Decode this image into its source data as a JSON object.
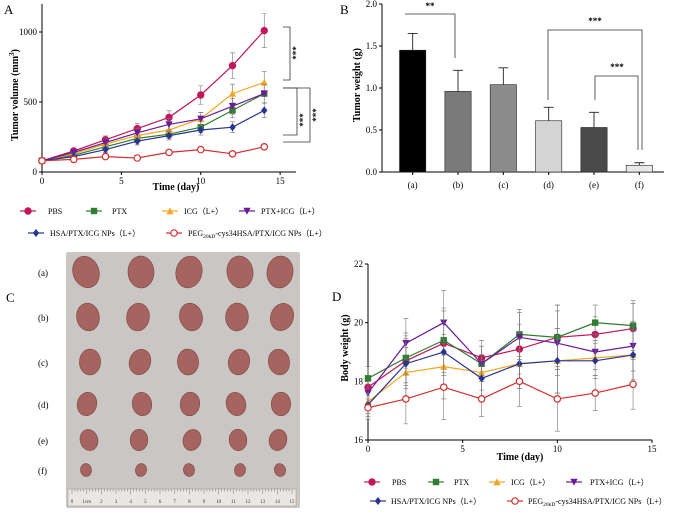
{
  "panels": {
    "a": "A",
    "b": "B",
    "c": "C",
    "d": "D"
  },
  "colors": {
    "pbs": "#c2185b",
    "ptx": "#2e7d32",
    "icg": "#f5a623",
    "ptxicg": "#6a1b9a",
    "hsa": "#283593",
    "peg": "#d32f2f",
    "photo_bg": "#c9c6c4",
    "tumor": "#a5645f"
  },
  "chart_data": [
    {
      "type": "line",
      "title": "A",
      "xlabel": "Time (day)",
      "ylabel": "Tumor volume (mm",
      "ylabel_sup": "3",
      "ylabel_end": ")",
      "xlim": [
        0,
        16
      ],
      "ylim": [
        0,
        1200
      ],
      "xticks": [
        "0",
        "5",
        "10",
        "15"
      ],
      "yticks": [
        "0",
        "500",
        "1000"
      ],
      "x": [
        0,
        2,
        4,
        6,
        8,
        10,
        12,
        14
      ],
      "series": [
        {
          "key": "pbs",
          "name": "PBS",
          "marker": "circle",
          "values": [
            80,
            150,
            230,
            310,
            390,
            550,
            760,
            1010
          ]
        },
        {
          "key": "ptx",
          "name": "PTX",
          "marker": "square",
          "values": [
            80,
            120,
            180,
            240,
            270,
            320,
            440,
            560
          ]
        },
        {
          "key": "icg",
          "name": "ICG（L+）",
          "marker": "triangle",
          "values": [
            80,
            130,
            200,
            260,
            300,
            380,
            560,
            640
          ]
        },
        {
          "key": "ptxicg",
          "name": "PTX+ICG（L+）",
          "marker": "triangle-down",
          "values": [
            80,
            140,
            210,
            280,
            340,
            380,
            470,
            560
          ]
        },
        {
          "key": "hsa",
          "name": "HSA/PTX/ICG NPs（L+）",
          "marker": "diamond",
          "values": [
            80,
            110,
            160,
            220,
            260,
            300,
            320,
            440
          ]
        },
        {
          "key": "peg",
          "name": "PEG",
          "name_sub": "20kD",
          "name_rest": "-cys34HSA/PTX/ICG NPs（L+）",
          "marker": "open-circle",
          "values": [
            80,
            90,
            110,
            100,
            140,
            160,
            130,
            180
          ]
        }
      ],
      "annotations": [
        "***",
        "***",
        "***"
      ]
    },
    {
      "type": "bar",
      "title": "B",
      "ylabel": "Tumor weight (g)",
      "ylim": [
        0,
        2.0
      ],
      "yticks": [
        "0.0",
        "0.5",
        "1.0",
        "1.5",
        "2.0"
      ],
      "categories": [
        "(a)",
        "(b)",
        "(c)",
        "(d)",
        "(e)",
        "(f)"
      ],
      "values": [
        1.45,
        0.96,
        1.04,
        0.61,
        0.53,
        0.08
      ],
      "errors": [
        0.2,
        0.25,
        0.2,
        0.16,
        0.18,
        0.03
      ],
      "bar_colors": [
        "#000000",
        "#7a7a7a",
        "#8c8c8c",
        "#d4d4d4",
        "#4a4a4a",
        "#e8e8e8"
      ],
      "annotations": [
        "**",
        "***",
        "***"
      ]
    },
    {
      "type": "line",
      "title": "D",
      "xlabel": "Time (day)",
      "ylabel": "Body weight (g)",
      "xlim": [
        0,
        15
      ],
      "ylim": [
        16,
        22
      ],
      "xticks": [
        "0",
        "5",
        "10",
        "15"
      ],
      "yticks": [
        "16",
        "18",
        "20",
        "22"
      ],
      "x": [
        0,
        2,
        4,
        6,
        8,
        10,
        12,
        14
      ],
      "series": [
        {
          "key": "pbs",
          "name": "PBS",
          "marker": "circle",
          "values": [
            17.8,
            18.7,
            19.3,
            18.8,
            19.1,
            19.5,
            19.6,
            19.8
          ]
        },
        {
          "key": "ptx",
          "name": "PTX",
          "marker": "square",
          "values": [
            18.1,
            18.8,
            19.4,
            18.6,
            19.6,
            19.5,
            20.0,
            19.9
          ]
        },
        {
          "key": "icg",
          "name": "ICG（L+）",
          "marker": "triangle",
          "values": [
            17.3,
            18.3,
            18.5,
            18.3,
            18.6,
            18.7,
            18.8,
            18.9
          ]
        },
        {
          "key": "ptxicg",
          "name": "PTX+ICG（L+）",
          "marker": "triangle-down",
          "values": [
            17.6,
            19.3,
            20.0,
            18.6,
            19.5,
            19.3,
            19.0,
            19.2
          ]
        },
        {
          "key": "hsa",
          "name": "HSA/PTX/ICG NPs（L+）",
          "marker": "diamond",
          "values": [
            17.2,
            18.6,
            19.0,
            18.1,
            18.6,
            18.7,
            18.7,
            18.9
          ]
        },
        {
          "key": "peg",
          "name": "PEG",
          "name_sub": "20kD",
          "name_rest": "-cys34HSA/PTX/ICG NPs（L+）",
          "marker": "open-circle",
          "values": [
            17.1,
            17.4,
            17.8,
            17.4,
            18.0,
            17.4,
            17.6,
            17.9
          ]
        }
      ]
    }
  ],
  "photo": {
    "rows": [
      "(a)",
      "(b)",
      "(c)",
      "(d)",
      "(e)",
      "(f)"
    ],
    "tumor_sizes": [
      1.0,
      0.85,
      0.78,
      0.7,
      0.62,
      0.32
    ],
    "columns": 5,
    "ruler_labels": [
      "0",
      "1cm",
      "2",
      "3",
      "4",
      "5",
      "6",
      "7",
      "8",
      "9",
      "10",
      "11",
      "12",
      "13",
      "14",
      "15"
    ]
  }
}
